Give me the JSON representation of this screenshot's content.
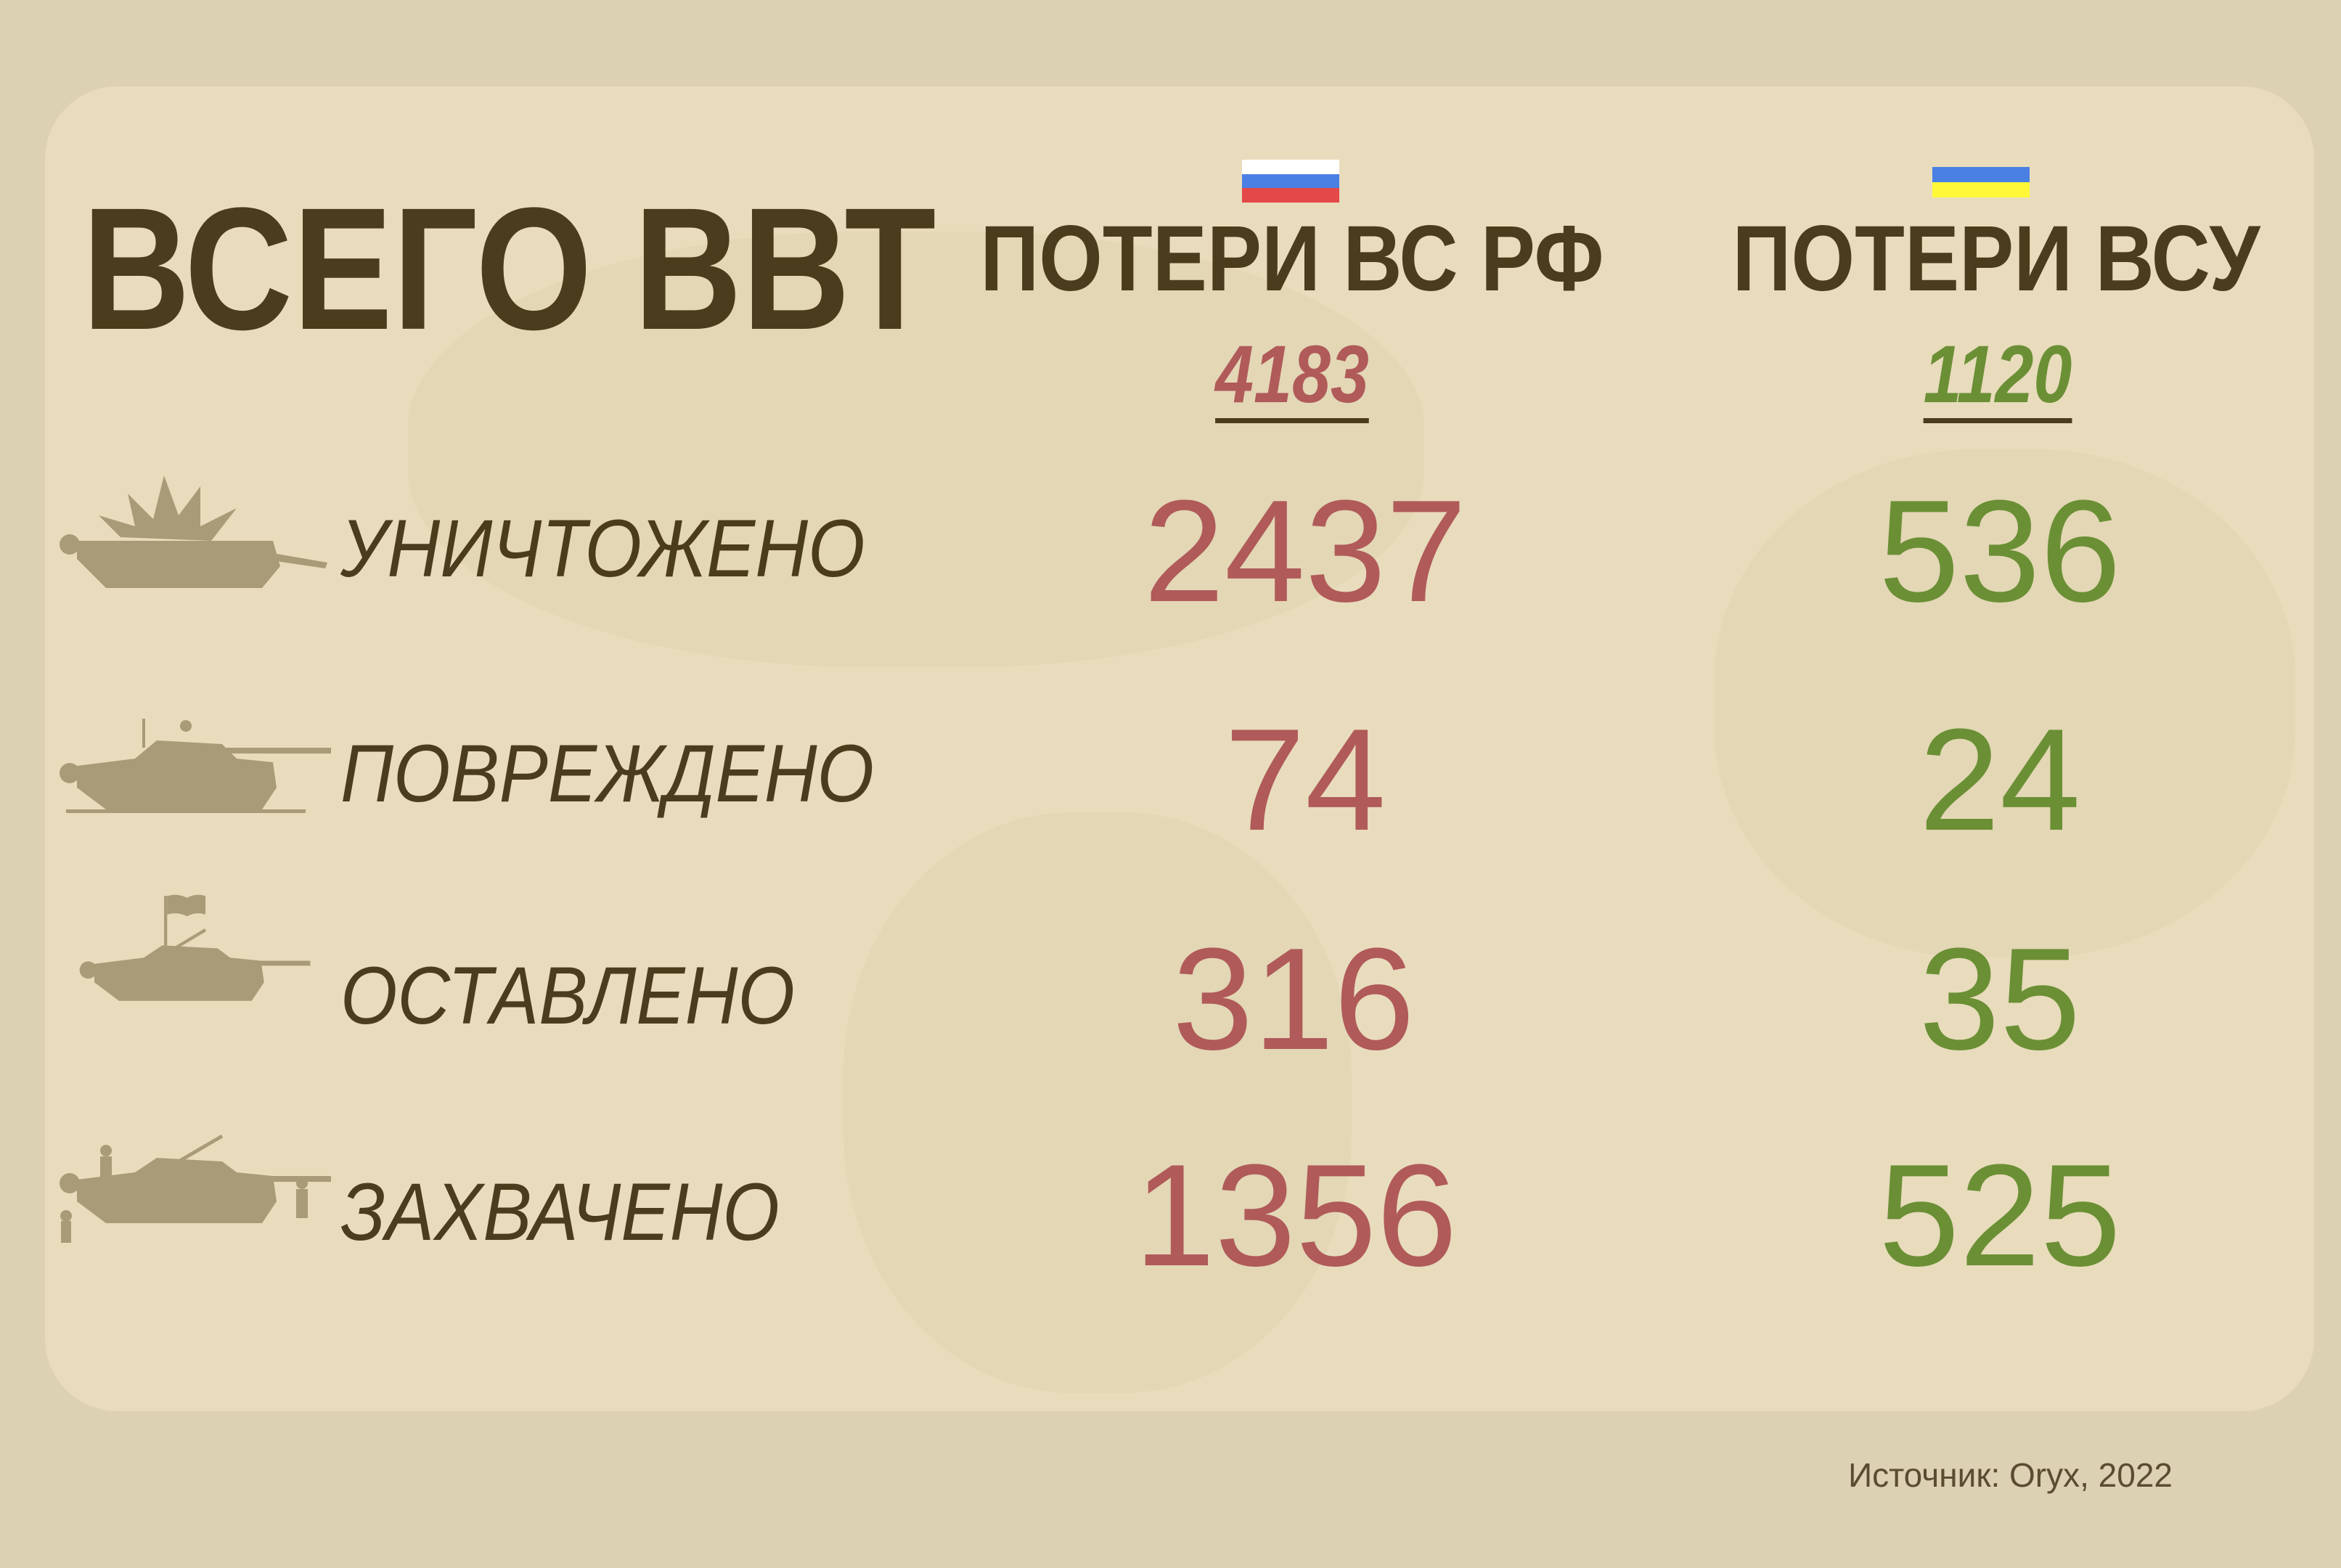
{
  "title": "ВСЕГО ВВТ",
  "columns": [
    {
      "header": "ПОТЕРИ ВС РФ",
      "total": "4183",
      "flag": "russia-flag",
      "color": "#b05a5a"
    },
    {
      "header": "ПОТЕРИ ВСУ",
      "total": "1120",
      "flag": "ukraine-flag",
      "color": "#6b8f35"
    }
  ],
  "rows": [
    {
      "label": "УНИЧТОЖЕНО",
      "icon": "destroyed-tank-icon",
      "ru": "2437",
      "ua": "536"
    },
    {
      "label": "ПОВРЕЖДЕНО",
      "icon": "damaged-tank-icon",
      "ru": "74",
      "ua": "24"
    },
    {
      "label": "ОСТАВЛЕНО",
      "icon": "abandoned-tank-icon",
      "ru": "316",
      "ua": "35"
    },
    {
      "label": "ЗАХВАЧЕНО",
      "icon": "captured-tank-icon",
      "ru": "1356",
      "ua": "525"
    }
  ],
  "source": "Источник: Oryx, 2022"
}
